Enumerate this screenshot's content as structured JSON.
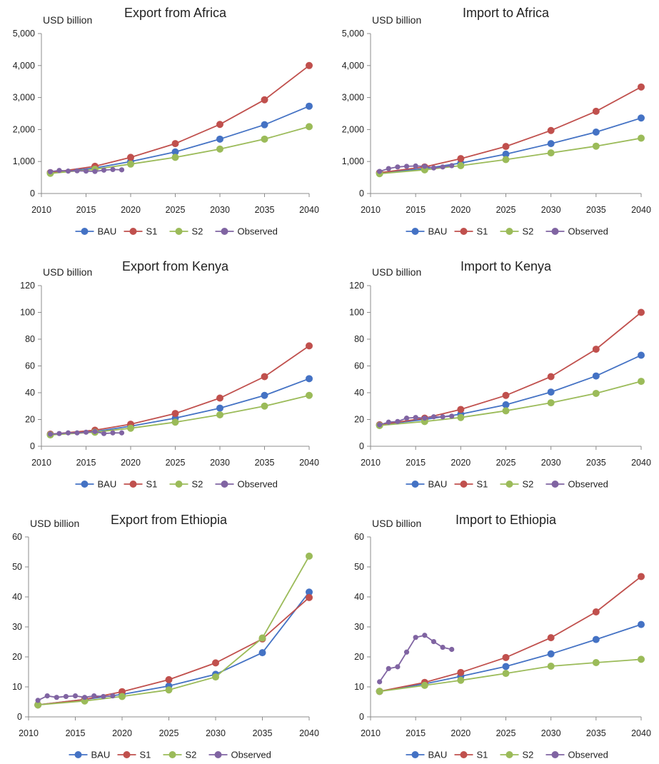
{
  "legend_colors": {
    "BAU": "#4472C4",
    "S1": "#C0504D",
    "S2": "#9BBB59",
    "Observed": "#8064A2"
  },
  "chart_data": [
    {
      "type": "line",
      "title": "Export from Africa",
      "unit_label": "USD billion",
      "ylim": [
        0,
        5000
      ],
      "yticks": [
        0,
        1000,
        2000,
        3000,
        4000,
        5000
      ],
      "ytick_labels": [
        "0",
        "1,000",
        "2,000",
        "3,000",
        "4,000",
        "5,000"
      ],
      "xlim": [
        2010,
        2040
      ],
      "xticks": [
        2010,
        2015,
        2020,
        2025,
        2030,
        2035,
        2040
      ],
      "legend_position": "bottom",
      "grid": false,
      "series": [
        {
          "name": "BAU",
          "color": "#4472C4",
          "x": [
            2011,
            2016,
            2020,
            2025,
            2030,
            2035,
            2040
          ],
          "y": [
            650,
            800,
            1000,
            1300,
            1700,
            2150,
            2730
          ]
        },
        {
          "name": "S1",
          "color": "#C0504D",
          "x": [
            2011,
            2016,
            2020,
            2025,
            2030,
            2035,
            2040
          ],
          "y": [
            650,
            850,
            1130,
            1560,
            2160,
            2930,
            4000
          ]
        },
        {
          "name": "S2",
          "color": "#9BBB59",
          "x": [
            2011,
            2016,
            2020,
            2025,
            2030,
            2035,
            2040
          ],
          "y": [
            630,
            760,
            920,
            1130,
            1390,
            1700,
            2090
          ]
        },
        {
          "name": "Observed",
          "color": "#8064A2",
          "x": [
            2011,
            2012,
            2013,
            2014,
            2015,
            2016,
            2017,
            2018,
            2019
          ],
          "y": [
            680,
            720,
            700,
            710,
            700,
            690,
            730,
            750,
            740
          ]
        }
      ]
    },
    {
      "type": "line",
      "title": "Import to Africa",
      "unit_label": "USD billion",
      "ylim": [
        0,
        5000
      ],
      "yticks": [
        0,
        1000,
        2000,
        3000,
        4000,
        5000
      ],
      "ytick_labels": [
        "0",
        "1,000",
        "2,000",
        "3,000",
        "4,000",
        "5,000"
      ],
      "xlim": [
        2010,
        2040
      ],
      "xticks": [
        2010,
        2015,
        2020,
        2025,
        2030,
        2035,
        2040
      ],
      "legend_position": "bottom",
      "grid": false,
      "series": [
        {
          "name": "BAU",
          "color": "#4472C4",
          "x": [
            2011,
            2016,
            2020,
            2025,
            2030,
            2035,
            2040
          ],
          "y": [
            650,
            780,
            950,
            1230,
            1560,
            1920,
            2360
          ]
        },
        {
          "name": "S1",
          "color": "#C0504D",
          "x": [
            2011,
            2016,
            2020,
            2025,
            2030,
            2035,
            2040
          ],
          "y": [
            650,
            830,
            1090,
            1470,
            1970,
            2570,
            3330
          ]
        },
        {
          "name": "S2",
          "color": "#9BBB59",
          "x": [
            2011,
            2016,
            2020,
            2025,
            2030,
            2035,
            2040
          ],
          "y": [
            620,
            740,
            870,
            1060,
            1270,
            1480,
            1730
          ]
        },
        {
          "name": "Observed",
          "color": "#8064A2",
          "x": [
            2011,
            2012,
            2013,
            2014,
            2015,
            2016,
            2017,
            2018,
            2019
          ],
          "y": [
            690,
            780,
            830,
            850,
            860,
            850,
            800,
            830,
            870
          ]
        }
      ]
    },
    {
      "type": "line",
      "title": "Export from Kenya",
      "unit_label": "USD billion",
      "ylim": [
        0,
        120
      ],
      "yticks": [
        0,
        20,
        40,
        60,
        80,
        100,
        120
      ],
      "ytick_labels": [
        "0",
        "20",
        "40",
        "60",
        "80",
        "100",
        "120"
      ],
      "xlim": [
        2010,
        2040
      ],
      "xticks": [
        2010,
        2015,
        2020,
        2025,
        2030,
        2035,
        2040
      ],
      "legend_position": "bottom",
      "grid": false,
      "series": [
        {
          "name": "BAU",
          "color": "#4472C4",
          "x": [
            2011,
            2016,
            2020,
            2025,
            2030,
            2035,
            2040
          ],
          "y": [
            9,
            11,
            15,
            21,
            28.5,
            38,
            50.5
          ]
        },
        {
          "name": "S1",
          "color": "#C0504D",
          "x": [
            2011,
            2016,
            2020,
            2025,
            2030,
            2035,
            2040
          ],
          "y": [
            9,
            12,
            16.5,
            24.5,
            36,
            52,
            75
          ]
        },
        {
          "name": "S2",
          "color": "#9BBB59",
          "x": [
            2011,
            2016,
            2020,
            2025,
            2030,
            2035,
            2040
          ],
          "y": [
            8.5,
            10.5,
            13.5,
            18,
            23.5,
            30,
            38
          ]
        },
        {
          "name": "Observed",
          "color": "#8064A2",
          "x": [
            2011,
            2012,
            2013,
            2014,
            2015,
            2016,
            2017,
            2018,
            2019
          ],
          "y": [
            9,
            9.5,
            10,
            10,
            10.5,
            11,
            9.5,
            10,
            10
          ]
        }
      ]
    },
    {
      "type": "line",
      "title": "Import to Kenya",
      "unit_label": "USD billion",
      "ylim": [
        0,
        120
      ],
      "yticks": [
        0,
        20,
        40,
        60,
        80,
        100,
        120
      ],
      "ytick_labels": [
        "0",
        "20",
        "40",
        "60",
        "80",
        "100",
        "120"
      ],
      "xlim": [
        2010,
        2040
      ],
      "xticks": [
        2010,
        2015,
        2020,
        2025,
        2030,
        2035,
        2040
      ],
      "legend_position": "bottom",
      "grid": false,
      "series": [
        {
          "name": "BAU",
          "color": "#4472C4",
          "x": [
            2011,
            2016,
            2020,
            2025,
            2030,
            2035,
            2040
          ],
          "y": [
            16,
            20,
            24,
            31,
            40.5,
            52.5,
            68
          ]
        },
        {
          "name": "S1",
          "color": "#C0504D",
          "x": [
            2011,
            2016,
            2020,
            2025,
            2030,
            2035,
            2040
          ],
          "y": [
            16,
            21,
            27.5,
            38,
            52,
            72.5,
            100
          ]
        },
        {
          "name": "S2",
          "color": "#9BBB59",
          "x": [
            2011,
            2016,
            2020,
            2025,
            2030,
            2035,
            2040
          ],
          "y": [
            15.5,
            18.5,
            21.5,
            26.5,
            32.5,
            39.5,
            48.5
          ]
        },
        {
          "name": "Observed",
          "color": "#8064A2",
          "x": [
            2011,
            2012,
            2013,
            2014,
            2015,
            2016,
            2017,
            2018,
            2019
          ],
          "y": [
            16,
            18,
            18.5,
            21,
            21.5,
            21,
            22,
            22,
            22.5
          ]
        }
      ]
    },
    {
      "type": "line",
      "title": "Export from Ethiopia",
      "unit_label": "USD billion",
      "ylim": [
        0,
        60
      ],
      "yticks": [
        0,
        10,
        20,
        30,
        40,
        50,
        60
      ],
      "ytick_labels": [
        "0",
        "10",
        "20",
        "30",
        "40",
        "50",
        "60"
      ],
      "xlim": [
        2010,
        2040
      ],
      "xticks": [
        2010,
        2015,
        2020,
        2025,
        2030,
        2035,
        2040
      ],
      "legend_position": "bottom",
      "grid": false,
      "series": [
        {
          "name": "BAU",
          "color": "#4472C4",
          "x": [
            2011,
            2016,
            2020,
            2025,
            2030,
            2035,
            2040
          ],
          "y": [
            4,
            5.8,
            7.5,
            10.3,
            14.2,
            21.4,
            41.6
          ]
        },
        {
          "name": "S1",
          "color": "#C0504D",
          "x": [
            2011,
            2016,
            2020,
            2025,
            2030,
            2035,
            2040
          ],
          "y": [
            4,
            5.8,
            8.4,
            12.4,
            18,
            26,
            39.8
          ]
        },
        {
          "name": "S2",
          "color": "#9BBB59",
          "x": [
            2011,
            2016,
            2020,
            2025,
            2030,
            2035,
            2040
          ],
          "y": [
            4,
            5.3,
            6.8,
            9,
            13.3,
            26.3,
            53.6
          ]
        },
        {
          "name": "Observed",
          "color": "#8064A2",
          "x": [
            2011,
            2012,
            2013,
            2014,
            2015,
            2016,
            2017,
            2018,
            2019
          ],
          "y": [
            5.5,
            7,
            6.5,
            6.8,
            7,
            6.5,
            7,
            6.8,
            7
          ]
        }
      ]
    },
    {
      "type": "line",
      "title": "Import to Ethiopia",
      "unit_label": "USD billion",
      "ylim": [
        0,
        60
      ],
      "yticks": [
        0,
        10,
        20,
        30,
        40,
        50,
        60
      ],
      "ytick_labels": [
        "0",
        "10",
        "20",
        "30",
        "40",
        "50",
        "60"
      ],
      "xlim": [
        2010,
        2040
      ],
      "xticks": [
        2010,
        2015,
        2020,
        2025,
        2030,
        2035,
        2040
      ],
      "legend_position": "bottom",
      "grid": false,
      "series": [
        {
          "name": "BAU",
          "color": "#4472C4",
          "x": [
            2011,
            2016,
            2020,
            2025,
            2030,
            2035,
            2040
          ],
          "y": [
            8.5,
            11,
            13.5,
            16.8,
            21,
            25.8,
            30.8
          ]
        },
        {
          "name": "S1",
          "color": "#C0504D",
          "x": [
            2011,
            2016,
            2020,
            2025,
            2030,
            2035,
            2040
          ],
          "y": [
            8.5,
            11.5,
            14.8,
            19.8,
            26.4,
            35,
            46.8
          ]
        },
        {
          "name": "S2",
          "color": "#9BBB59",
          "x": [
            2011,
            2016,
            2020,
            2025,
            2030,
            2035,
            2040
          ],
          "y": [
            8.5,
            10.5,
            12.2,
            14.5,
            16.9,
            18.1,
            19.2
          ]
        },
        {
          "name": "Observed",
          "color": "#8064A2",
          "x": [
            2011,
            2012,
            2013,
            2014,
            2015,
            2016,
            2017,
            2018,
            2019
          ],
          "y": [
            11.7,
            16.1,
            16.7,
            21.6,
            26.5,
            27.2,
            25.1,
            23.2,
            22.5
          ]
        }
      ]
    }
  ]
}
